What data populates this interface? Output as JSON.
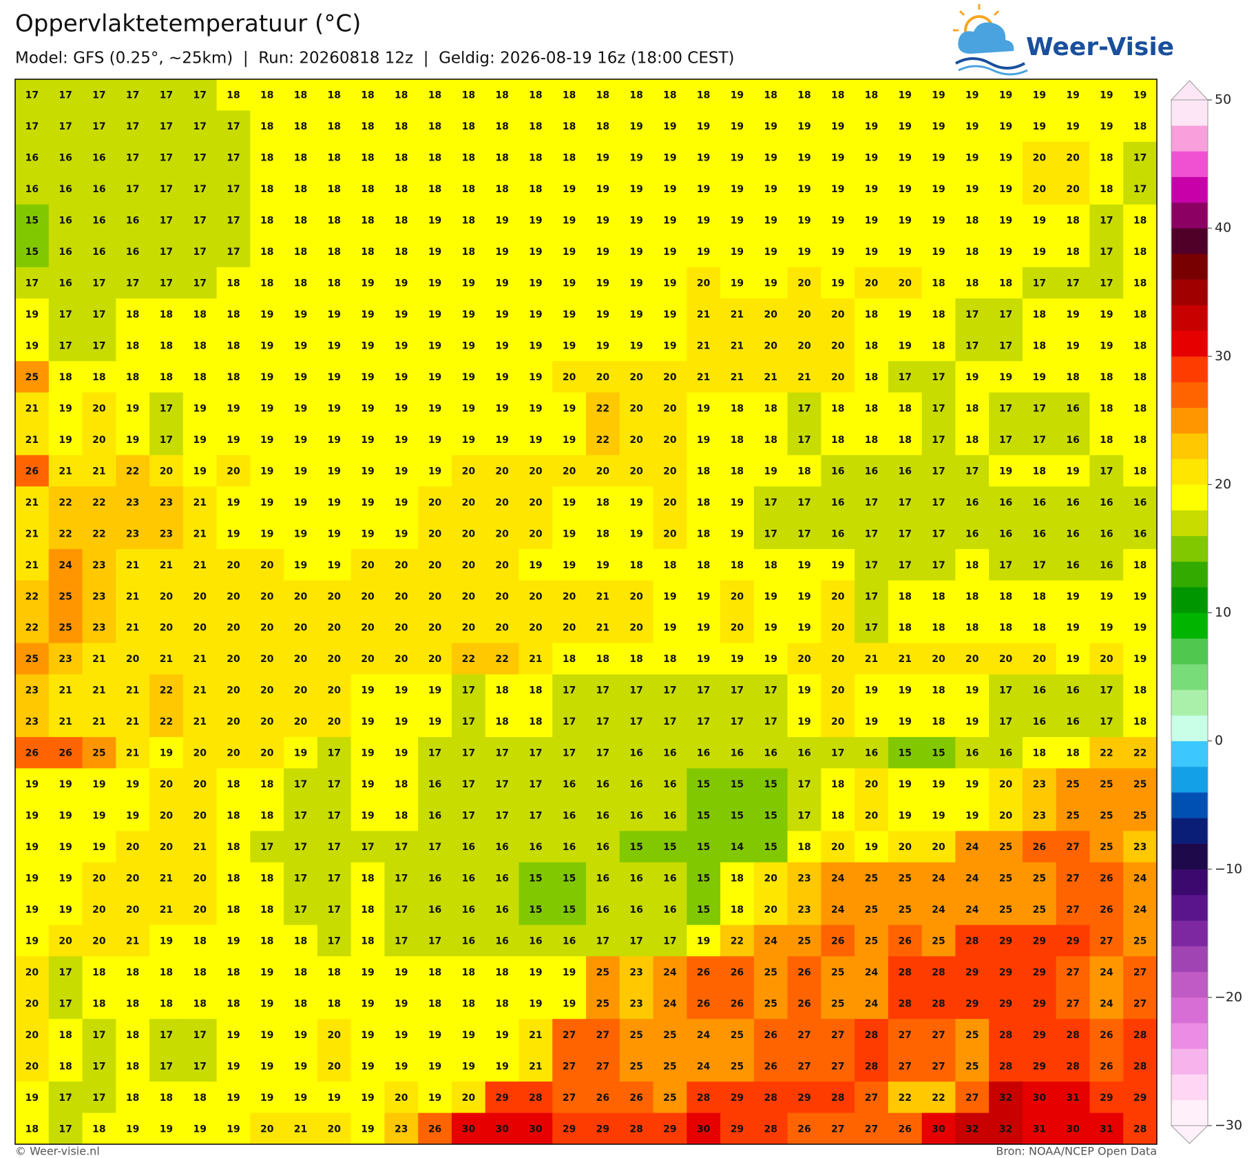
{
  "header": {
    "title": "Oppervlaktetemperatuur (°C)",
    "subtitle": "Model: GFS (0.25°, ~25km)  |  Run: 20260818 12z  |  Geldig: 2026-08-19 16z (18:00 CEST)"
  },
  "logo": {
    "text": "Weer-Visie"
  },
  "grid": {
    "rows": [
      [
        17,
        17,
        17,
        17,
        17,
        17,
        18,
        18,
        18,
        18,
        18,
        18,
        18,
        18,
        18,
        18,
        18,
        18,
        18,
        18,
        18,
        19,
        18,
        18,
        18,
        18,
        19,
        19,
        19,
        19,
        19,
        19,
        19,
        19
      ],
      [
        17,
        17,
        17,
        17,
        17,
        17,
        17,
        18,
        18,
        18,
        18,
        18,
        18,
        18,
        18,
        18,
        18,
        18,
        19,
        19,
        19,
        19,
        19,
        19,
        19,
        19,
        19,
        19,
        19,
        19,
        19,
        19,
        19,
        18
      ],
      [
        16,
        16,
        16,
        17,
        17,
        17,
        17,
        18,
        18,
        18,
        18,
        18,
        18,
        18,
        18,
        18,
        18,
        19,
        19,
        19,
        19,
        19,
        19,
        19,
        19,
        19,
        19,
        19,
        19,
        19,
        20,
        20,
        18,
        17
      ],
      [
        16,
        16,
        16,
        17,
        17,
        17,
        17,
        18,
        18,
        18,
        18,
        18,
        18,
        18,
        18,
        18,
        19,
        19,
        19,
        19,
        19,
        19,
        19,
        19,
        19,
        19,
        19,
        19,
        19,
        19,
        20,
        20,
        18,
        17
      ],
      [
        15,
        16,
        16,
        16,
        17,
        17,
        17,
        18,
        18,
        18,
        18,
        18,
        19,
        18,
        19,
        19,
        19,
        19,
        19,
        19,
        19,
        19,
        19,
        19,
        19,
        19,
        19,
        19,
        18,
        19,
        19,
        18,
        17,
        18
      ],
      [
        15,
        16,
        16,
        16,
        17,
        17,
        17,
        18,
        18,
        18,
        18,
        18,
        19,
        18,
        19,
        19,
        19,
        19,
        19,
        19,
        19,
        19,
        19,
        19,
        19,
        19,
        19,
        19,
        18,
        19,
        19,
        18,
        17,
        18
      ],
      [
        17,
        16,
        17,
        17,
        17,
        17,
        18,
        18,
        18,
        18,
        19,
        19,
        19,
        19,
        19,
        19,
        19,
        19,
        19,
        19,
        20,
        19,
        19,
        20,
        19,
        20,
        20,
        18,
        18,
        18,
        17,
        17,
        17,
        18
      ],
      [
        19,
        17,
        17,
        18,
        18,
        18,
        18,
        19,
        19,
        19,
        19,
        19,
        19,
        19,
        19,
        19,
        19,
        19,
        19,
        19,
        21,
        21,
        20,
        20,
        20,
        18,
        19,
        18,
        17,
        17,
        18,
        19,
        19,
        18
      ],
      [
        19,
        17,
        17,
        18,
        18,
        18,
        18,
        19,
        19,
        19,
        19,
        19,
        19,
        19,
        19,
        19,
        19,
        19,
        19,
        19,
        21,
        21,
        20,
        20,
        20,
        18,
        19,
        18,
        17,
        17,
        18,
        19,
        19,
        18
      ],
      [
        25,
        18,
        18,
        18,
        18,
        18,
        18,
        19,
        19,
        19,
        19,
        19,
        19,
        19,
        19,
        19,
        20,
        20,
        20,
        20,
        21,
        21,
        21,
        21,
        20,
        18,
        17,
        17,
        19,
        19,
        19,
        18,
        18,
        18
      ],
      [
        21,
        19,
        20,
        19,
        17,
        19,
        19,
        19,
        19,
        19,
        19,
        19,
        19,
        19,
        19,
        19,
        19,
        22,
        20,
        20,
        19,
        18,
        18,
        17,
        18,
        18,
        18,
        17,
        18,
        17,
        17,
        16,
        18,
        18
      ],
      [
        21,
        19,
        20,
        19,
        17,
        19,
        19,
        19,
        19,
        19,
        19,
        19,
        19,
        19,
        19,
        19,
        19,
        22,
        20,
        20,
        19,
        18,
        18,
        17,
        18,
        18,
        18,
        17,
        18,
        17,
        17,
        16,
        18,
        18
      ],
      [
        26,
        21,
        21,
        22,
        20,
        19,
        20,
        19,
        19,
        19,
        19,
        19,
        19,
        20,
        20,
        20,
        20,
        20,
        20,
        20,
        18,
        18,
        19,
        18,
        16,
        16,
        16,
        17,
        17,
        19,
        18,
        19,
        17,
        18
      ],
      [
        21,
        22,
        22,
        23,
        23,
        21,
        19,
        19,
        19,
        19,
        19,
        19,
        20,
        20,
        20,
        20,
        19,
        18,
        19,
        20,
        18,
        19,
        17,
        17,
        16,
        17,
        17,
        17,
        16,
        16,
        16,
        16,
        16,
        16
      ],
      [
        21,
        22,
        22,
        23,
        23,
        21,
        19,
        19,
        19,
        19,
        19,
        19,
        20,
        20,
        20,
        20,
        19,
        18,
        19,
        20,
        18,
        19,
        17,
        17,
        16,
        17,
        17,
        17,
        16,
        16,
        16,
        16,
        16,
        16
      ],
      [
        21,
        24,
        23,
        21,
        21,
        21,
        20,
        20,
        19,
        19,
        20,
        20,
        20,
        20,
        20,
        19,
        19,
        19,
        18,
        18,
        18,
        18,
        18,
        19,
        19,
        17,
        17,
        17,
        18,
        17,
        17,
        16,
        16,
        18
      ],
      [
        22,
        25,
        23,
        21,
        20,
        20,
        20,
        20,
        20,
        20,
        20,
        20,
        20,
        20,
        20,
        20,
        20,
        21,
        20,
        19,
        19,
        20,
        19,
        19,
        20,
        17,
        18,
        18,
        18,
        18,
        18,
        19,
        19,
        19
      ],
      [
        22,
        25,
        23,
        21,
        20,
        20,
        20,
        20,
        20,
        20,
        20,
        20,
        20,
        20,
        20,
        20,
        20,
        21,
        20,
        19,
        19,
        20,
        19,
        19,
        20,
        17,
        18,
        18,
        18,
        18,
        18,
        19,
        19,
        19
      ],
      [
        25,
        23,
        21,
        20,
        21,
        21,
        20,
        20,
        20,
        20,
        20,
        20,
        20,
        22,
        22,
        21,
        18,
        18,
        18,
        18,
        19,
        19,
        19,
        20,
        20,
        21,
        21,
        20,
        20,
        20,
        20,
        19,
        20,
        19
      ],
      [
        23,
        21,
        21,
        21,
        22,
        21,
        20,
        20,
        20,
        20,
        19,
        19,
        19,
        17,
        18,
        18,
        17,
        17,
        17,
        17,
        17,
        17,
        17,
        19,
        20,
        19,
        19,
        18,
        19,
        17,
        16,
        16,
        17,
        18
      ],
      [
        23,
        21,
        21,
        21,
        22,
        21,
        20,
        20,
        20,
        20,
        19,
        19,
        19,
        17,
        18,
        18,
        17,
        17,
        17,
        17,
        17,
        17,
        17,
        19,
        20,
        19,
        19,
        18,
        19,
        17,
        16,
        16,
        17,
        18
      ],
      [
        26,
        26,
        25,
        21,
        19,
        20,
        20,
        20,
        19,
        17,
        19,
        19,
        17,
        17,
        17,
        17,
        17,
        17,
        16,
        16,
        16,
        16,
        16,
        16,
        17,
        16,
        15,
        15,
        16,
        16,
        18,
        18,
        22,
        22
      ],
      [
        19,
        19,
        19,
        19,
        20,
        20,
        18,
        18,
        17,
        17,
        19,
        18,
        16,
        17,
        17,
        17,
        16,
        16,
        16,
        16,
        15,
        15,
        15,
        17,
        18,
        20,
        19,
        19,
        19,
        20,
        23,
        25,
        25,
        25
      ],
      [
        19,
        19,
        19,
        19,
        20,
        20,
        18,
        18,
        17,
        17,
        19,
        18,
        16,
        17,
        17,
        17,
        16,
        16,
        16,
        16,
        15,
        15,
        15,
        17,
        18,
        20,
        19,
        19,
        19,
        20,
        23,
        25,
        25,
        25
      ],
      [
        19,
        19,
        19,
        20,
        20,
        21,
        18,
        17,
        17,
        17,
        17,
        17,
        17,
        16,
        16,
        16,
        16,
        16,
        15,
        15,
        15,
        14,
        15,
        18,
        20,
        19,
        20,
        20,
        24,
        25,
        26,
        27,
        25,
        23
      ],
      [
        19,
        19,
        20,
        20,
        21,
        20,
        18,
        18,
        17,
        17,
        18,
        17,
        16,
        16,
        16,
        15,
        15,
        16,
        16,
        16,
        15,
        18,
        20,
        23,
        24,
        25,
        25,
        24,
        24,
        25,
        25,
        27,
        26,
        24
      ],
      [
        19,
        19,
        20,
        20,
        21,
        20,
        18,
        18,
        17,
        17,
        18,
        17,
        16,
        16,
        16,
        15,
        15,
        16,
        16,
        16,
        15,
        18,
        20,
        23,
        24,
        25,
        25,
        24,
        24,
        25,
        25,
        27,
        26,
        24
      ],
      [
        19,
        20,
        20,
        21,
        19,
        18,
        19,
        18,
        18,
        17,
        18,
        17,
        17,
        16,
        16,
        16,
        16,
        17,
        17,
        17,
        19,
        22,
        24,
        25,
        26,
        25,
        26,
        25,
        28,
        29,
        29,
        29,
        27,
        25
      ],
      [
        20,
        17,
        18,
        18,
        18,
        18,
        18,
        19,
        18,
        18,
        19,
        19,
        18,
        18,
        18,
        19,
        19,
        25,
        23,
        24,
        26,
        26,
        25,
        26,
        25,
        24,
        28,
        28,
        29,
        29,
        29,
        27,
        24,
        27
      ],
      [
        20,
        17,
        18,
        18,
        18,
        18,
        18,
        19,
        18,
        18,
        19,
        19,
        18,
        18,
        18,
        19,
        19,
        25,
        23,
        24,
        26,
        26,
        25,
        26,
        25,
        24,
        28,
        28,
        29,
        29,
        29,
        27,
        24,
        27
      ],
      [
        20,
        18,
        17,
        18,
        17,
        17,
        19,
        19,
        19,
        20,
        19,
        19,
        19,
        19,
        19,
        21,
        27,
        27,
        25,
        25,
        24,
        25,
        26,
        27,
        27,
        28,
        27,
        27,
        25,
        28,
        29,
        28,
        26,
        28
      ],
      [
        20,
        18,
        17,
        18,
        17,
        17,
        19,
        19,
        19,
        20,
        19,
        19,
        19,
        19,
        19,
        21,
        27,
        27,
        25,
        25,
        24,
        25,
        26,
        27,
        27,
        28,
        27,
        27,
        25,
        28,
        29,
        28,
        26,
        28
      ],
      [
        19,
        17,
        17,
        18,
        18,
        18,
        19,
        19,
        19,
        19,
        19,
        20,
        19,
        20,
        29,
        28,
        27,
        26,
        26,
        25,
        28,
        29,
        28,
        29,
        28,
        27,
        22,
        22,
        27,
        32,
        30,
        31,
        29,
        29
      ],
      [
        18,
        17,
        18,
        19,
        19,
        19,
        19,
        20,
        21,
        20,
        19,
        23,
        26,
        30,
        30,
        30,
        29,
        29,
        28,
        29,
        30,
        29,
        28,
        26,
        27,
        27,
        26,
        30,
        32,
        32,
        31,
        30,
        31,
        28
      ]
    ]
  },
  "colorbar": {
    "lim": [
      -30,
      50
    ],
    "colors": [
      "#fff0fa",
      "#ffd7f5",
      "#f7b4ec",
      "#ec8ce4",
      "#d66ed6",
      "#c05ac4",
      "#a044b4",
      "#7d28a0",
      "#5a148c",
      "#3c0a6e",
      "#1e0a4b",
      "#0a1e78",
      "#0050b4",
      "#14a0e6",
      "#3cc8ff",
      "#c8ffe6",
      "#aaf0aa",
      "#78dc78",
      "#50c850",
      "#00b400",
      "#009600",
      "#32aa00",
      "#82c800",
      "#c8dc00",
      "#ffff00",
      "#ffe600",
      "#ffc800",
      "#ff9600",
      "#ff6400",
      "#ff3c00",
      "#e60000",
      "#c80000",
      "#a00000",
      "#780000",
      "#500028",
      "#8c0064",
      "#c800aa",
      "#f050d2",
      "#f9a0dc",
      "#fde6f5"
    ],
    "ticks": [
      50,
      40,
      30,
      20,
      10,
      0,
      {
        "value": -10,
        "label": "−10"
      },
      {
        "value": -20,
        "label": "−20"
      },
      {
        "value": -30,
        "label": "−30"
      }
    ]
  },
  "footer": {
    "left": "© Weer-visie.nl",
    "right": "Bron: NOAA/NCEP Open Data"
  }
}
